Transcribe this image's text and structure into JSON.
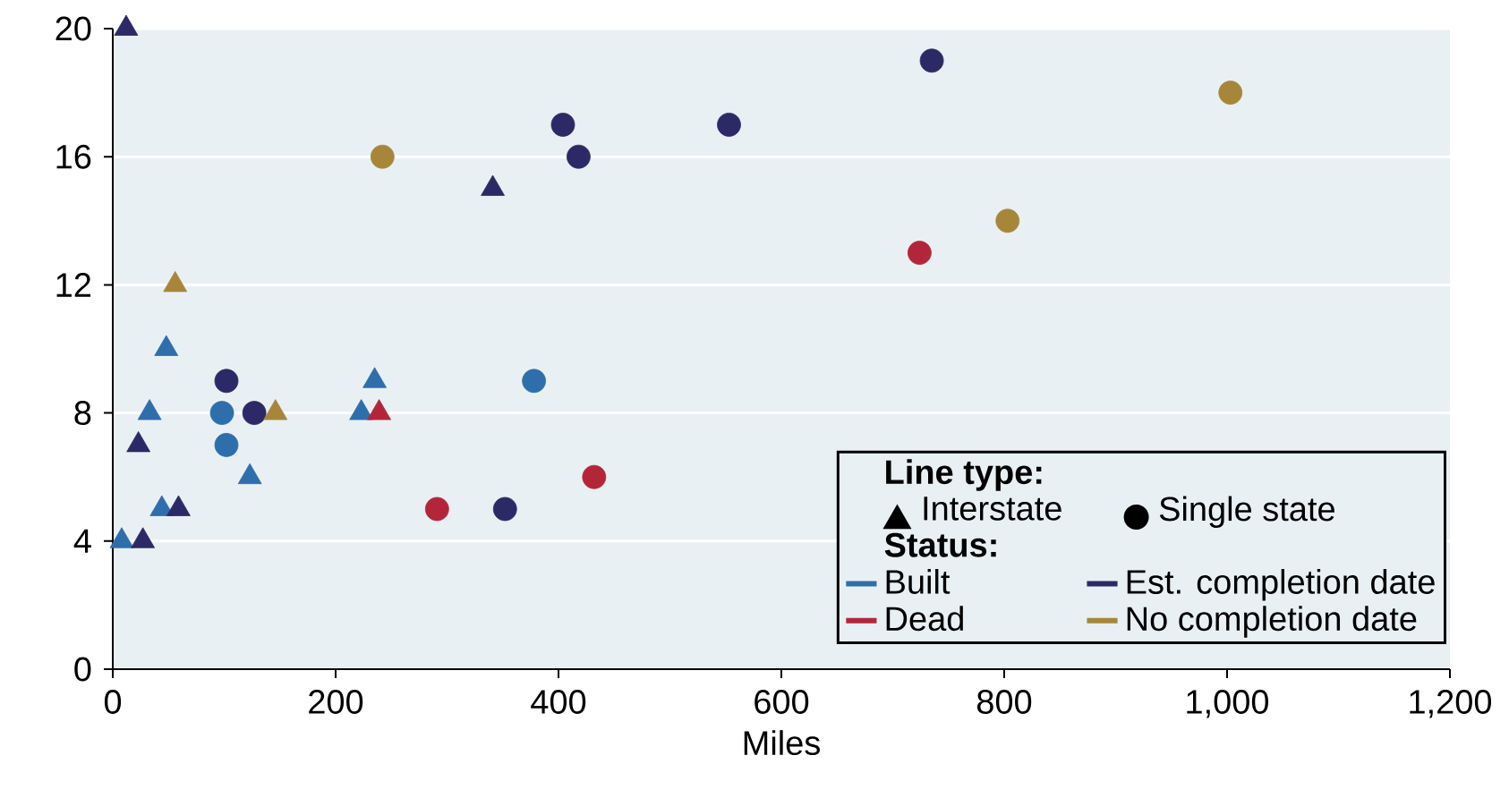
{
  "chart_data": {
    "type": "scatter",
    "xlabel": "Miles",
    "xlim": [
      0,
      1200
    ],
    "ylim": [
      0,
      20
    ],
    "xticks": [
      0,
      200,
      400,
      600,
      800,
      {
        "value": 1000,
        "label": "1,000"
      },
      {
        "value": 1200,
        "label": "1,200"
      }
    ],
    "yticks": [
      0,
      4,
      8,
      12,
      16,
      20
    ],
    "grid": "y",
    "legend": "bottom right",
    "legend_title": "Status:",
    "annotations": [
      "Line type:",
      "Interstate",
      "Single state"
    ],
    "series": [
      {
        "name": "Built",
        "color": "#2e6fab",
        "marker": "triangle",
        "x": [
          8,
          44,
          33,
          48,
          123,
          223,
          235
        ],
        "values": [
          4,
          5,
          8,
          10,
          6,
          8,
          9
        ]
      },
      {
        "color": "#2e6fab",
        "marker": "circle",
        "x": [
          98,
          102,
          378
        ],
        "values": [
          8,
          7,
          9
        ]
      },
      {
        "name": "Dead",
        "color": "#b3263a",
        "marker": "triangle",
        "x": [
          239
        ],
        "values": [
          8
        ]
      },
      {
        "color": "#b3263a",
        "marker": "circle",
        "x": [
          291,
          432,
          724
        ],
        "values": [
          5,
          6,
          13
        ]
      },
      {
        "name": "Est. completion date",
        "color": "#2b2a66",
        "marker": "triangle",
        "x": [
          12,
          27,
          23,
          59,
          341
        ],
        "values": [
          20,
          4,
          7,
          5,
          15
        ]
      },
      {
        "color": "#2b2a66",
        "marker": "circle",
        "x": [
          102,
          127,
          352,
          404,
          418,
          553,
          735
        ],
        "values": [
          9,
          8,
          5,
          17,
          16,
          17,
          19
        ]
      },
      {
        "name": "No completion date",
        "color": "#a6873a",
        "marker": "triangle",
        "x": [
          56,
          146
        ],
        "values": [
          12,
          8
        ]
      },
      {
        "color": "#a6873a",
        "marker": "circle",
        "x": [
          242,
          803,
          1003
        ],
        "values": [
          16,
          14,
          18
        ]
      }
    ]
  }
}
